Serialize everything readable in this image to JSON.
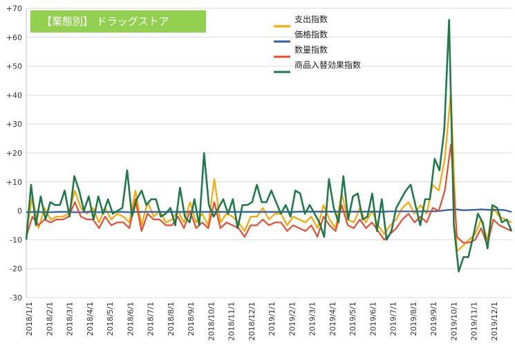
{
  "chart_data": {
    "type": "line",
    "title": "【業態別】 ドラッグストア",
    "title_bg_color": "#92d050",
    "xlabel": "",
    "ylabel": "",
    "ylim": [
      -30,
      70
    ],
    "y_ticks": [
      "+70",
      "+60",
      "+50",
      "+40",
      "+30",
      "+20",
      "+10",
      "0",
      "-10",
      "-20",
      "-30"
    ],
    "y_tick_values": [
      70,
      60,
      50,
      40,
      30,
      20,
      10,
      0,
      -10,
      -20,
      -30
    ],
    "x_tick_labels": [
      "2018/1/1",
      "2018/2/1",
      "2018/3/1",
      "2018/4/1",
      "2018/5/1",
      "2018/6/1",
      "2018/7/1",
      "2018/8/1",
      "2018/9/1",
      "2018/10/1",
      "2018/11/1",
      "2018/12/1",
      "2019/1/1",
      "2019/2/1",
      "2019/3/1",
      "2019/4/1",
      "2019/5/1",
      "2019/6/1",
      "2019/7/1",
      "2019/8/1",
      "2019/9/1",
      "2019/10/1",
      "2019/11/1",
      "2019/12/1"
    ],
    "grid": "horizontal",
    "legend_position": "top-center",
    "frequency": "weekly",
    "series": [
      {
        "name": "支出指数",
        "color": "#ffa500",
        "values": [
          -8,
          5,
          -6,
          1,
          -3,
          -2,
          -2,
          -1,
          7,
          1,
          -1,
          1,
          -4,
          1,
          -3,
          -1,
          -2,
          -4,
          7,
          -5,
          3,
          -2,
          0,
          -4,
          -3,
          0,
          -4,
          3,
          -4,
          -1,
          -5,
          11,
          -4,
          -1,
          -2,
          -4,
          -7,
          -2,
          -2,
          1,
          -3,
          -1,
          -1,
          -5,
          -2,
          -3,
          -4,
          -2,
          -6,
          2,
          -3,
          -6,
          6,
          -3,
          -4,
          1,
          -4,
          0,
          -5,
          -8,
          -5,
          -3,
          1,
          3,
          -1,
          2,
          -1,
          9,
          7,
          18,
          41,
          -14,
          -12,
          -10,
          -8,
          -3,
          -10,
          1,
          -2,
          -3,
          -4
        ]
      },
      {
        "name": "価格指数",
        "color": "#2e5fa8",
        "values": [
          -0.5,
          -0.4,
          -0.4,
          -0.5,
          -0.5,
          -0.4,
          -0.4,
          -0.4,
          -0.5,
          -0.5,
          -0.4,
          -0.4,
          -0.5,
          -0.4,
          -0.4,
          -0.4,
          -0.4,
          -0.5,
          -0.4,
          -0.4,
          -0.4,
          -0.4,
          -0.4,
          -0.4,
          -0.4,
          -0.4,
          -0.4,
          -0.4,
          -0.4,
          -0.4,
          -0.4,
          -0.4,
          -0.4,
          -0.4,
          -0.4,
          -0.4,
          -0.4,
          -0.4,
          -0.4,
          -0.4,
          -0.4,
          -0.4,
          -0.4,
          -0.4,
          -0.4,
          -0.3,
          -0.3,
          -0.3,
          -0.3,
          -0.3,
          -0.3,
          -0.3,
          -0.3,
          -0.3,
          -0.3,
          -0.3,
          -0.3,
          -0.3,
          -0.3,
          -0.3,
          -0.2,
          -0.2,
          -0.2,
          -0.2,
          -0.2,
          -0.2,
          -0.2,
          -0.2,
          -0.1,
          0.2,
          0.4,
          0.5,
          0.2,
          0.3,
          0.4,
          0.5,
          0.4,
          0.3,
          0.4,
          0.2,
          -0.4
        ]
      },
      {
        "name": "数量指数",
        "color": "#e84c30",
        "values": [
          -9,
          -2,
          -5,
          -3,
          -4,
          -3,
          -3,
          -2,
          3,
          -2,
          -3,
          -3,
          -6,
          -2,
          -5,
          -4,
          -4,
          -6,
          4,
          -7,
          -1,
          -3,
          -3,
          -5,
          -5,
          -2,
          -6,
          0,
          -6,
          -4,
          -6,
          3,
          -6,
          -4,
          -5,
          -6,
          -9,
          -5,
          -5,
          -3,
          -5,
          -4,
          -4,
          -7,
          -5,
          -6,
          -7,
          -5,
          -9,
          -2,
          -5,
          -7,
          2,
          -5,
          -6,
          -3,
          -6,
          -4,
          -7,
          -10,
          -8,
          -6,
          -3,
          -1,
          -4,
          -2,
          -4,
          1,
          0,
          7,
          23,
          -9,
          -11,
          -11,
          -10,
          -6,
          -12,
          -3,
          -5,
          -6,
          -7
        ]
      },
      {
        "name": "商品入替効果指数",
        "color": "#1f7a4a",
        "values": [
          -10,
          9,
          -5,
          5,
          -3,
          3,
          2,
          2,
          7,
          -2,
          12,
          7,
          0,
          5,
          -3,
          5,
          -1,
          4,
          -1,
          0,
          1,
          14,
          -2,
          4,
          7,
          2,
          4,
          4,
          -2,
          -1,
          1,
          -5,
          8,
          -2,
          -4,
          4,
          -5,
          20,
          2,
          -2,
          1,
          4,
          -1,
          4,
          -6,
          2,
          2,
          3,
          9,
          3,
          3,
          7,
          3,
          -1,
          2,
          -2,
          7,
          6,
          -1,
          2,
          -1,
          -4,
          -9,
          11,
          1,
          -4,
          12,
          -3,
          5,
          6,
          -3,
          -2,
          6,
          -7,
          4,
          -10,
          -7,
          1,
          4,
          7,
          9,
          2,
          -5,
          4,
          4,
          18,
          14,
          28,
          66,
          -5,
          -21,
          -16,
          -16,
          -9,
          -1,
          -4,
          -13,
          2,
          1,
          -4,
          -3,
          -7
        ]
      }
    ]
  }
}
